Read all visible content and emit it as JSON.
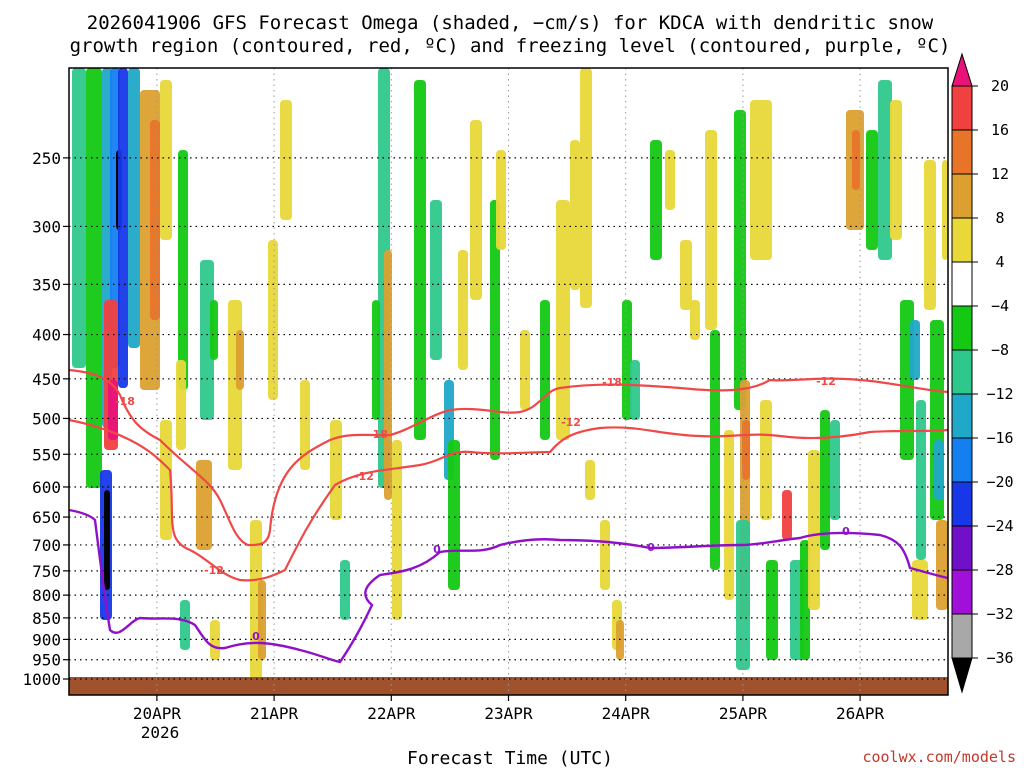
{
  "chart_data": {
    "type": "heatmap",
    "title_line1": "2026041906 GFS Forecast Omega (shaded, −cm/s) for KDCA with dendritic snow",
    "title_line2": "growth region (contoured, red, ºC) and freezing level (contoured, purple, ºC)",
    "xlabel": "Forecast Time (UTC)",
    "credit": "coolwx.com/models",
    "y_ticks": [
      250,
      300,
      350,
      400,
      450,
      500,
      550,
      600,
      650,
      700,
      750,
      800,
      850,
      900,
      950,
      1000
    ],
    "y_tick_labels": [
      "250",
      "300",
      "350",
      "400",
      "450",
      "500",
      "550",
      "600",
      "650",
      "700",
      "750",
      "800",
      "850",
      "900",
      "950",
      "1000"
    ],
    "ylim": [
      1000,
      200
    ],
    "x_ticks": [
      "20APR",
      "21APR",
      "22APR",
      "23APR",
      "24APR",
      "25APR",
      "26APR"
    ],
    "x_year": "2026",
    "xlim": [
      "2026-04-19T06:00Z",
      "2026-04-26T18:00Z"
    ],
    "grid": true,
    "colorbar": {
      "labels": [
        "20",
        "16",
        "12",
        "8",
        "4",
        "−4",
        "−8",
        "−12",
        "−16",
        "−20",
        "−24",
        "−28",
        "−32",
        "−36"
      ],
      "colors": [
        "#e8137a",
        "#f04040",
        "#e8742a",
        "#dca030",
        "#e8d83a",
        "#ffffff",
        "#14c814",
        "#2ec88c",
        "#20a8c8",
        "#1480f0",
        "#1838e8",
        "#7010c8",
        "#a010d8",
        "#a8a8a8",
        "#000000"
      ]
    },
    "contours": {
      "dgz_color": "#f04848",
      "freezing_color": "#9010c8",
      "dgz_labels": [
        "-18",
        "-18",
        "-18",
        "-12",
        "-12",
        "-12",
        "-12"
      ],
      "freezing_labels": [
        "0",
        "0",
        "0",
        "0"
      ]
    },
    "ground_color": "#a0522d"
  }
}
